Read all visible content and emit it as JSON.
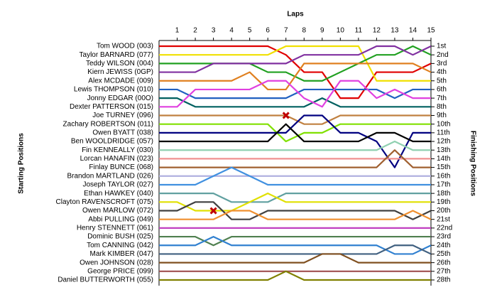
{
  "chart_data": {
    "type": "line",
    "x_label": "Laps",
    "y_label": "Starting Positions",
    "y2_label": "Finishing Positions",
    "x": [
      0,
      1,
      2,
      3,
      4,
      5,
      6,
      7,
      8,
      9,
      10,
      11,
      12,
      13,
      14,
      15
    ],
    "xlim": [
      0,
      15
    ],
    "xticks": [
      1,
      2,
      3,
      4,
      5,
      6,
      7,
      8,
      9,
      10,
      11,
      12,
      13,
      14,
      15
    ],
    "ylim": [
      1,
      28
    ],
    "y_reversed": true,
    "y2ticks": [
      {
        "value": 1,
        "label": "1st"
      },
      {
        "value": 2,
        "label": "2nd"
      },
      {
        "value": 3,
        "label": "3rd"
      },
      {
        "value": 4,
        "label": "4th"
      },
      {
        "value": 5,
        "label": "5th"
      },
      {
        "value": 6,
        "label": "6th"
      },
      {
        "value": 7,
        "label": "7th"
      },
      {
        "value": 8,
        "label": "8th"
      },
      {
        "value": 9,
        "label": "9th"
      },
      {
        "value": 10,
        "label": "10th"
      },
      {
        "value": 11,
        "label": "11th"
      },
      {
        "value": 12,
        "label": "12th"
      },
      {
        "value": 13,
        "label": "13th"
      },
      {
        "value": 14,
        "label": "14th"
      },
      {
        "value": 15,
        "label": "15th"
      },
      {
        "value": 16,
        "label": "16th"
      },
      {
        "value": 17,
        "label": "17th"
      },
      {
        "value": 18,
        "label": "18th"
      },
      {
        "value": 19,
        "label": "19th"
      },
      {
        "value": 20,
        "label": "20th"
      },
      {
        "value": 21,
        "label": "21st"
      },
      {
        "value": 22,
        "label": "22nd"
      },
      {
        "value": 23,
        "label": "23rd"
      },
      {
        "value": 24,
        "label": "24th"
      },
      {
        "value": 25,
        "label": "25th"
      },
      {
        "value": 26,
        "label": "26th"
      },
      {
        "value": 27,
        "label": "27th"
      },
      {
        "value": 28,
        "label": "28th"
      }
    ],
    "series": [
      {
        "name": "Tom WOOD (003)",
        "color": "#e00000",
        "values": [
          1,
          1,
          1,
          1,
          1,
          1,
          1,
          2,
          4,
          4,
          7,
          7,
          4,
          4,
          4,
          3
        ]
      },
      {
        "name": "Taylor BARNARD (077)",
        "color": "#f0e000",
        "values": [
          2,
          2,
          2,
          2,
          2,
          2,
          2,
          1,
          1,
          1,
          1,
          1,
          5,
          5,
          5,
          5
        ]
      },
      {
        "name": "Teddy WILSON (004)",
        "color": "#20a020",
        "values": [
          3,
          3,
          3,
          3,
          3,
          3,
          4,
          4,
          5,
          5,
          4,
          3,
          2,
          2,
          1,
          2
        ]
      },
      {
        "name": "Kiern JEWISS (0GP)",
        "color": "#8030a0",
        "values": [
          4,
          4,
          4,
          3,
          3,
          3,
          3,
          3,
          2,
          2,
          2,
          2,
          1,
          1,
          2,
          1
        ]
      },
      {
        "name": "Alex MCDADE (009)",
        "color": "#e08020",
        "values": [
          5,
          5,
          5,
          5,
          5,
          4,
          6,
          6,
          3,
          3,
          3,
          3,
          3,
          3,
          3,
          4
        ]
      },
      {
        "name": "Lewis THOMPSON (010)",
        "color": "#2060c0",
        "values": [
          6,
          6,
          7,
          7,
          7,
          7,
          7,
          7,
          6,
          6,
          6,
          6,
          6,
          7,
          6,
          6
        ]
      },
      {
        "name": "Jonny EDGAR (00O)",
        "color": "#006060",
        "values": [
          7,
          7,
          8,
          8,
          8,
          8,
          8,
          8,
          8,
          7,
          8,
          8,
          8,
          8,
          8,
          8
        ]
      },
      {
        "name": "Dexter PATTERSON (015)",
        "color": "#e040e0",
        "values": [
          8,
          8,
          6,
          6,
          6,
          6,
          5,
          5,
          7,
          8,
          5,
          5,
          7,
          6,
          7,
          7
        ]
      },
      {
        "name": "Joe TURNEY (096)",
        "color": "#c08040",
        "values": [
          9,
          9,
          9,
          9,
          9,
          9,
          9,
          9,
          10,
          10,
          9,
          9,
          9,
          9,
          9,
          9
        ]
      },
      {
        "name": "Zachary ROBERTSON (011)",
        "color": "#80e000",
        "values": [
          10,
          10,
          10,
          10,
          10,
          10,
          10,
          12,
          11,
          11,
          10,
          10,
          10,
          10,
          10,
          10
        ]
      },
      {
        "name": "Owen BYATT (038)",
        "color": "#000080",
        "values": [
          11,
          11,
          11,
          11,
          11,
          11,
          11,
          11,
          9,
          9,
          11,
          11,
          12,
          15,
          11,
          11
        ]
      },
      {
        "name": "Ben WOOLDRIDGE (057)",
        "color": "#000000",
        "values": [
          12,
          12,
          12,
          12,
          12,
          12,
          12,
          10,
          12,
          12,
          12,
          12,
          11,
          11,
          12,
          12
        ]
      },
      {
        "name": "Fin KENNEALLY (030)",
        "color": "#90d0b0",
        "values": [
          13,
          13,
          13,
          13,
          13,
          13,
          13,
          13,
          13,
          13,
          13,
          13,
          13,
          12,
          13,
          13
        ]
      },
      {
        "name": "Lorcan HANAFIN (023)",
        "color": "#f09090",
        "values": [
          14,
          14,
          14,
          14,
          14,
          14,
          14,
          14,
          14,
          14,
          14,
          14,
          14,
          14,
          14,
          14
        ]
      },
      {
        "name": "Finlay BUNCE (068)",
        "color": "#a06030",
        "values": [
          15,
          15,
          15,
          15,
          15,
          15,
          15,
          15,
          15,
          15,
          15,
          15,
          15,
          13,
          15,
          15
        ]
      },
      {
        "name": "Brandon MARTLAND (026)",
        "color": "#b0b0e0",
        "values": [
          16,
          16,
          16,
          16,
          16,
          16,
          16,
          16,
          16,
          16,
          16,
          16,
          16,
          16,
          16,
          16
        ]
      },
      {
        "name": "Joseph TAYLOR (027)",
        "color": "#4090e0",
        "values": [
          17,
          17,
          17,
          16,
          15,
          16,
          17,
          17,
          17,
          17,
          17,
          17,
          17,
          17,
          17,
          17
        ]
      },
      {
        "name": "Ethan HAWKEY (040)",
        "color": "#60a0a0",
        "values": [
          18,
          18,
          18,
          18,
          19,
          19,
          19,
          18,
          18,
          18,
          18,
          18,
          18,
          18,
          18,
          18
        ]
      },
      {
        "name": "Clayton RAVENSCROFT (075)",
        "color": "#e0e000",
        "values": [
          19,
          19,
          20,
          20,
          20,
          19,
          18,
          19,
          19,
          19,
          19,
          19,
          19,
          19,
          19,
          19
        ]
      },
      {
        "name": "Owen MARLOW (072)",
        "color": "#404040",
        "values": [
          20,
          20,
          19,
          19,
          21,
          21,
          20,
          20,
          20,
          20,
          20,
          20,
          20,
          20,
          21,
          20
        ]
      },
      {
        "name": "Abbi PULLING (049)",
        "color": "#f09030",
        "values": [
          21,
          21,
          21,
          21,
          20,
          20,
          21,
          21,
          21,
          21,
          21,
          21,
          21,
          21,
          20,
          21
        ]
      },
      {
        "name": "Henry STENNETT (061)",
        "color": "#c040c0",
        "values": [
          22,
          22,
          22,
          22,
          22,
          22,
          22,
          22,
          22,
          22,
          22,
          22,
          22,
          22,
          22,
          22
        ]
      },
      {
        "name": "Dominic BUSH (025)",
        "color": "#508050",
        "values": [
          23,
          23,
          23,
          24,
          23,
          23,
          23,
          23,
          23,
          23,
          23,
          23,
          23,
          23,
          23,
          23
        ]
      },
      {
        "name": "Tom CANNING (042)",
        "color": "#3080d0",
        "values": [
          24,
          24,
          24,
          23,
          24,
          24,
          24,
          24,
          24,
          24,
          24,
          24,
          24,
          25,
          25,
          24
        ]
      },
      {
        "name": "Mark KIMBER (047)",
        "color": "#406080",
        "values": [
          25,
          25,
          25,
          25,
          25,
          25,
          25,
          25,
          25,
          25,
          25,
          25,
          25,
          24,
          24,
          25
        ]
      },
      {
        "name": "Owen JOHNSON (028)",
        "color": "#805020",
        "values": [
          26,
          26,
          26,
          26,
          26,
          26,
          26,
          26,
          26,
          25,
          25,
          26,
          26,
          26,
          26,
          26
        ]
      },
      {
        "name": "George PRICE (099)",
        "color": "#a05050",
        "values": [
          27,
          27,
          27,
          27,
          27,
          27,
          27,
          27,
          27,
          27,
          27,
          27,
          27,
          27,
          27,
          27
        ]
      },
      {
        "name": "Daniel BUTTERWORTH (055)",
        "color": "#808000",
        "values": [
          28,
          28,
          28,
          28,
          28,
          28,
          28,
          27,
          28,
          28,
          28,
          28,
          28,
          28,
          28,
          28
        ]
      }
    ],
    "markers": [
      {
        "x": 7,
        "y": 9
      },
      {
        "x": 3,
        "y": 20
      }
    ]
  }
}
